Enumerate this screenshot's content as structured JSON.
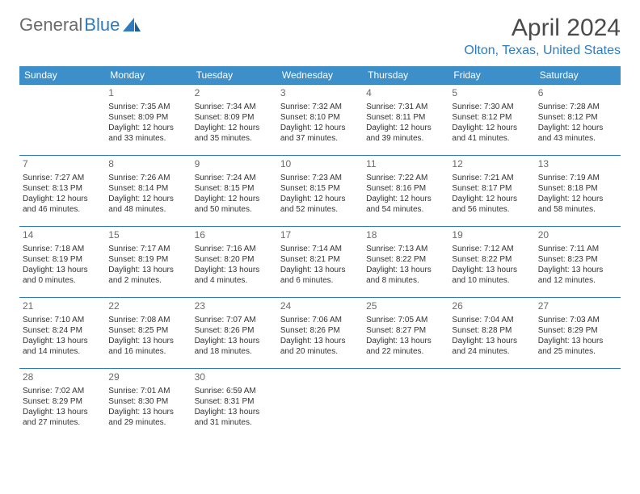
{
  "logo": {
    "text1": "General",
    "text2": "Blue"
  },
  "title": "April 2024",
  "location": "Olton, Texas, United States",
  "colors": {
    "header_bg": "#3d8fc9",
    "header_text": "#ffffff",
    "accent": "#2f7bbf",
    "logo_gray": "#6a6a6a",
    "body_text": "#333333",
    "title_gray": "#4a4a4a",
    "page_bg": "#ffffff"
  },
  "weekdays": [
    "Sunday",
    "Monday",
    "Tuesday",
    "Wednesday",
    "Thursday",
    "Friday",
    "Saturday"
  ],
  "days": [
    {
      "n": 1,
      "sr": "7:35 AM",
      "ss": "8:09 PM",
      "dl": "12 hours and 33 minutes."
    },
    {
      "n": 2,
      "sr": "7:34 AM",
      "ss": "8:09 PM",
      "dl": "12 hours and 35 minutes."
    },
    {
      "n": 3,
      "sr": "7:32 AM",
      "ss": "8:10 PM",
      "dl": "12 hours and 37 minutes."
    },
    {
      "n": 4,
      "sr": "7:31 AM",
      "ss": "8:11 PM",
      "dl": "12 hours and 39 minutes."
    },
    {
      "n": 5,
      "sr": "7:30 AM",
      "ss": "8:12 PM",
      "dl": "12 hours and 41 minutes."
    },
    {
      "n": 6,
      "sr": "7:28 AM",
      "ss": "8:12 PM",
      "dl": "12 hours and 43 minutes."
    },
    {
      "n": 7,
      "sr": "7:27 AM",
      "ss": "8:13 PM",
      "dl": "12 hours and 46 minutes."
    },
    {
      "n": 8,
      "sr": "7:26 AM",
      "ss": "8:14 PM",
      "dl": "12 hours and 48 minutes."
    },
    {
      "n": 9,
      "sr": "7:24 AM",
      "ss": "8:15 PM",
      "dl": "12 hours and 50 minutes."
    },
    {
      "n": 10,
      "sr": "7:23 AM",
      "ss": "8:15 PM",
      "dl": "12 hours and 52 minutes."
    },
    {
      "n": 11,
      "sr": "7:22 AM",
      "ss": "8:16 PM",
      "dl": "12 hours and 54 minutes."
    },
    {
      "n": 12,
      "sr": "7:21 AM",
      "ss": "8:17 PM",
      "dl": "12 hours and 56 minutes."
    },
    {
      "n": 13,
      "sr": "7:19 AM",
      "ss": "8:18 PM",
      "dl": "12 hours and 58 minutes."
    },
    {
      "n": 14,
      "sr": "7:18 AM",
      "ss": "8:19 PM",
      "dl": "13 hours and 0 minutes."
    },
    {
      "n": 15,
      "sr": "7:17 AM",
      "ss": "8:19 PM",
      "dl": "13 hours and 2 minutes."
    },
    {
      "n": 16,
      "sr": "7:16 AM",
      "ss": "8:20 PM",
      "dl": "13 hours and 4 minutes."
    },
    {
      "n": 17,
      "sr": "7:14 AM",
      "ss": "8:21 PM",
      "dl": "13 hours and 6 minutes."
    },
    {
      "n": 18,
      "sr": "7:13 AM",
      "ss": "8:22 PM",
      "dl": "13 hours and 8 minutes."
    },
    {
      "n": 19,
      "sr": "7:12 AM",
      "ss": "8:22 PM",
      "dl": "13 hours and 10 minutes."
    },
    {
      "n": 20,
      "sr": "7:11 AM",
      "ss": "8:23 PM",
      "dl": "13 hours and 12 minutes."
    },
    {
      "n": 21,
      "sr": "7:10 AM",
      "ss": "8:24 PM",
      "dl": "13 hours and 14 minutes."
    },
    {
      "n": 22,
      "sr": "7:08 AM",
      "ss": "8:25 PM",
      "dl": "13 hours and 16 minutes."
    },
    {
      "n": 23,
      "sr": "7:07 AM",
      "ss": "8:26 PM",
      "dl": "13 hours and 18 minutes."
    },
    {
      "n": 24,
      "sr": "7:06 AM",
      "ss": "8:26 PM",
      "dl": "13 hours and 20 minutes."
    },
    {
      "n": 25,
      "sr": "7:05 AM",
      "ss": "8:27 PM",
      "dl": "13 hours and 22 minutes."
    },
    {
      "n": 26,
      "sr": "7:04 AM",
      "ss": "8:28 PM",
      "dl": "13 hours and 24 minutes."
    },
    {
      "n": 27,
      "sr": "7:03 AM",
      "ss": "8:29 PM",
      "dl": "13 hours and 25 minutes."
    },
    {
      "n": 28,
      "sr": "7:02 AM",
      "ss": "8:29 PM",
      "dl": "13 hours and 27 minutes."
    },
    {
      "n": 29,
      "sr": "7:01 AM",
      "ss": "8:30 PM",
      "dl": "13 hours and 29 minutes."
    },
    {
      "n": 30,
      "sr": "6:59 AM",
      "ss": "8:31 PM",
      "dl": "13 hours and 31 minutes."
    }
  ],
  "labels": {
    "sunrise": "Sunrise:",
    "sunset": "Sunset:",
    "daylight": "Daylight:"
  },
  "layout": {
    "first_weekday_offset": 1,
    "weeks": 5
  }
}
